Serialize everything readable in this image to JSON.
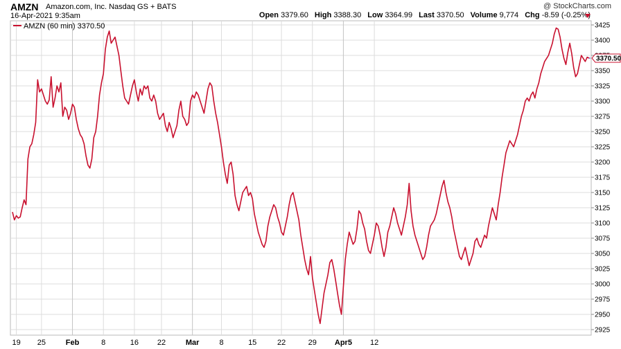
{
  "header": {
    "symbol": "AMZN",
    "name": "Amazon.com, Inc. Nasdaq GS + BATS",
    "datetime": "16-Apr-2021 9:35am",
    "credit": "@ StockCharts.com",
    "open_label": "Open",
    "open": "3379.60",
    "high_label": "High",
    "high": "3388.30",
    "low_label": "Low",
    "low": "3364.99",
    "last_label": "Last",
    "last": "3370.50",
    "volume_label": "Volume",
    "volume": "9,774",
    "chg_label": "Chg",
    "chg": "-8.59 (-0.25%)"
  },
  "colors": {
    "series": "#c8102e",
    "grid": "#dcdcdc",
    "last_marker": "#2a3fd6"
  },
  "chart_data": {
    "type": "line",
    "legend": "AMZN (60 min) 3370.50",
    "last_label": "3370.50",
    "ylim": [
      2925,
      3425
    ],
    "yticks": [
      2925,
      2950,
      2975,
      3000,
      3025,
      3050,
      3075,
      3100,
      3125,
      3150,
      3175,
      3200,
      3225,
      3250,
      3275,
      3300,
      3325,
      3350,
      3375,
      3400,
      3425
    ],
    "xticks": [
      {
        "label": "19",
        "i": 2
      },
      {
        "label": "25",
        "i": 15
      },
      {
        "label": "Feb",
        "i": 31,
        "major": true
      },
      {
        "label": "8",
        "i": 47
      },
      {
        "label": "16",
        "i": 63
      },
      {
        "label": "22",
        "i": 77
      },
      {
        "label": "Mar",
        "i": 93,
        "major": true
      },
      {
        "label": "8",
        "i": 108
      },
      {
        "label": "15",
        "i": 124
      },
      {
        "label": "22",
        "i": 139
      },
      {
        "label": "29",
        "i": 155
      },
      {
        "label": "Apr5",
        "i": 171,
        "major": true
      },
      {
        "label": "12",
        "i": 187
      }
    ],
    "series": [
      {
        "values": [
          3118,
          3105,
          3112,
          3108,
          3110,
          3125,
          3138,
          3130,
          3205,
          3225,
          3230,
          3245,
          3265,
          3335,
          3315,
          3320,
          3310,
          3300,
          3295,
          3302,
          3340,
          3290,
          3305,
          3325,
          3315,
          3330,
          3275,
          3290,
          3285,
          3270,
          3280,
          3295,
          3290,
          3270,
          3255,
          3245,
          3240,
          3230,
          3210,
          3195,
          3190,
          3205,
          3240,
          3250,
          3275,
          3310,
          3330,
          3345,
          3385,
          3405,
          3415,
          3395,
          3400,
          3405,
          3390,
          3375,
          3350,
          3325,
          3305,
          3300,
          3295,
          3310,
          3325,
          3335,
          3315,
          3300,
          3320,
          3310,
          3325,
          3320,
          3325,
          3305,
          3300,
          3310,
          3300,
          3280,
          3270,
          3275,
          3280,
          3260,
          3250,
          3265,
          3255,
          3240,
          3250,
          3260,
          3285,
          3300,
          3275,
          3270,
          3260,
          3265,
          3300,
          3310,
          3305,
          3315,
          3310,
          3300,
          3290,
          3280,
          3300,
          3320,
          3330,
          3325,
          3300,
          3280,
          3265,
          3245,
          3225,
          3200,
          3180,
          3165,
          3195,
          3200,
          3180,
          3145,
          3130,
          3120,
          3135,
          3150,
          3155,
          3160,
          3145,
          3150,
          3140,
          3115,
          3100,
          3085,
          3075,
          3065,
          3060,
          3070,
          3095,
          3110,
          3120,
          3130,
          3125,
          3110,
          3100,
          3085,
          3080,
          3095,
          3110,
          3130,
          3145,
          3150,
          3135,
          3120,
          3105,
          3080,
          3060,
          3040,
          3025,
          3015,
          3045,
          3010,
          2990,
          2970,
          2950,
          2935,
          2960,
          2985,
          3000,
          3015,
          3035,
          3040,
          3025,
          3005,
          2985,
          2965,
          2950,
          2995,
          3040,
          3065,
          3085,
          3075,
          3065,
          3070,
          3090,
          3120,
          3115,
          3100,
          3090,
          3070,
          3055,
          3050,
          3065,
          3080,
          3100,
          3095,
          3080,
          3060,
          3045,
          3060,
          3085,
          3095,
          3110,
          3125,
          3115,
          3100,
          3090,
          3080,
          3095,
          3110,
          3130,
          3165,
          3120,
          3095,
          3080,
          3070,
          3060,
          3050,
          3040,
          3045,
          3060,
          3080,
          3095,
          3100,
          3105,
          3115,
          3130,
          3145,
          3160,
          3170,
          3150,
          3135,
          3125,
          3110,
          3090,
          3075,
          3060,
          3045,
          3040,
          3050,
          3060,
          3045,
          3030,
          3040,
          3050,
          3070,
          3075,
          3065,
          3060,
          3070,
          3080,
          3075,
          3095,
          3110,
          3125,
          3115,
          3105,
          3130,
          3150,
          3175,
          3195,
          3215,
          3225,
          3235,
          3230,
          3225,
          3235,
          3245,
          3260,
          3275,
          3285,
          3300,
          3305,
          3300,
          3310,
          3315,
          3305,
          3320,
          3330,
          3345,
          3355,
          3365,
          3370,
          3375,
          3385,
          3395,
          3410,
          3420,
          3418,
          3405,
          3385,
          3370,
          3360,
          3380,
          3395,
          3378,
          3355,
          3340,
          3345,
          3360,
          3375,
          3370,
          3365,
          3372,
          3370.5
        ]
      }
    ]
  }
}
